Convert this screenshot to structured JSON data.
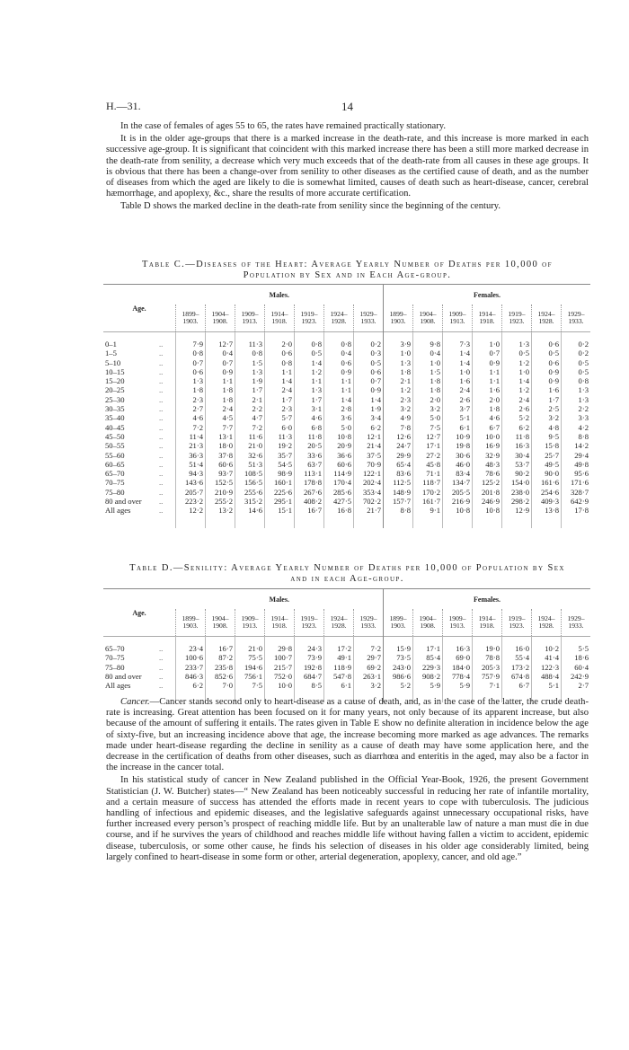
{
  "header": {
    "ref": "H.—31.",
    "page_number": "14"
  },
  "intro_paragraphs": [
    "In the case of females of ages 55 to 65, the rates have remained practically stationary.",
    "It is in the older age-groups that there is a marked increase in the death-rate, and this increase is more marked in each successive age-group. It is significant that coincident with this marked increase there has been a still more marked decrease in the death-rate from senility, a decrease which very much exceeds that of the death-rate from all causes in these age groups. It is obvious that there has been a change-over from senility to other diseases as the certified cause of death, and as the number of diseases from which the aged are likely to die is somewhat limited, causes of death such as heart-disease, cancer, cerebral hæmorrhage, and apoplexy, &c., share the results of more accurate certification.",
    "Table D shows the marked decline in the death-rate from senility since the beginning of the century."
  ],
  "table_c": {
    "title_line1": "Table C.—Diseases of the Heart: Average Yearly Number of Deaths per 10,000 of",
    "title_line2": "Population by Sex and in Each Age-group.",
    "age_header": "Age.",
    "males_header": "Males.",
    "females_header": "Females.",
    "periods": [
      [
        "1899–",
        "1903."
      ],
      [
        "1904–",
        "1908."
      ],
      [
        "1909–",
        "1913."
      ],
      [
        "1914–",
        "1918."
      ],
      [
        "1919–",
        "1923."
      ],
      [
        "1924–",
        "1928."
      ],
      [
        "1929–",
        "1933."
      ]
    ],
    "dots": "..",
    "rows": [
      {
        "age": "0–1",
        "males": [
          "7·9",
          "12·7",
          "11·3",
          "2·0",
          "0·8",
          "0·8",
          "0·2"
        ],
        "females": [
          "3·9",
          "9·8",
          "7·3",
          "1·0",
          "1·3",
          "0·6",
          "0·2"
        ]
      },
      {
        "age": "1–5",
        "males": [
          "0·8",
          "0·4",
          "0·8",
          "0·6",
          "0·5",
          "0·4",
          "0·3"
        ],
        "females": [
          "1·0",
          "0·4",
          "1·4",
          "0·7",
          "0·5",
          "0·5",
          "0·2"
        ]
      },
      {
        "age": "5–10",
        "males": [
          "0·7",
          "0·7",
          "1·5",
          "0·8",
          "1·4",
          "0·6",
          "0·5"
        ],
        "females": [
          "1·3",
          "1·0",
          "1·4",
          "0·9",
          "1·2",
          "0·6",
          "0·5"
        ]
      },
      {
        "age": "10–15",
        "males": [
          "0·6",
          "0·9",
          "1·3",
          "1·1",
          "1·2",
          "0·9",
          "0·6"
        ],
        "females": [
          "1·8",
          "1·5",
          "1·0",
          "1·1",
          "1·0",
          "0·9",
          "0·5"
        ]
      },
      {
        "age": "15–20",
        "males": [
          "1·3",
          "1·1",
          "1·9",
          "1·4",
          "1·1",
          "1·1",
          "0·7"
        ],
        "females": [
          "2·1",
          "1·8",
          "1·6",
          "1·1",
          "1·4",
          "0·9",
          "0·8"
        ]
      },
      {
        "age": "20–25",
        "males": [
          "1·8",
          "1·8",
          "1·7",
          "2·4",
          "1·3",
          "1·1",
          "0·9"
        ],
        "females": [
          "1·2",
          "1·8",
          "2·4",
          "1·6",
          "1·2",
          "1·6",
          "1·3"
        ]
      },
      {
        "age": "25–30",
        "males": [
          "2·3",
          "1·8",
          "2·1",
          "1·7",
          "1·7",
          "1·4",
          "1·4"
        ],
        "females": [
          "2·3",
          "2·0",
          "2·6",
          "2·0",
          "2·4",
          "1·7",
          "1·3"
        ]
      },
      {
        "age": "30–35",
        "males": [
          "2·7",
          "2·4",
          "2·2",
          "2·3",
          "3·1",
          "2·8",
          "1·9"
        ],
        "females": [
          "3·2",
          "3·2",
          "3·7",
          "1·8",
          "2·6",
          "2·5",
          "2·2"
        ]
      },
      {
        "age": "35–40",
        "males": [
          "4·6",
          "4·5",
          "4·7",
          "5·7",
          "4·6",
          "3·6",
          "3·4"
        ],
        "females": [
          "4·9",
          "5·0",
          "5·1",
          "4·6",
          "5·2",
          "3·2",
          "3·3"
        ]
      },
      {
        "age": "40–45",
        "males": [
          "7·2",
          "7·7",
          "7·2",
          "6·0",
          "6·8",
          "5·0",
          "6·2"
        ],
        "females": [
          "7·8",
          "7·5",
          "6·1",
          "6·7",
          "6·2",
          "4·8",
          "4·2"
        ]
      },
      {
        "age": "45–50",
        "males": [
          "11·4",
          "13·1",
          "11·6",
          "11·3",
          "11·8",
          "10·8",
          "12·1"
        ],
        "females": [
          "12·6",
          "12·7",
          "10·9",
          "10·0",
          "11·8",
          "9·5",
          "8·8"
        ]
      },
      {
        "age": "50–55",
        "males": [
          "21·3",
          "18·0",
          "21·0",
          "19·2",
          "20·5",
          "20·9",
          "21·4"
        ],
        "females": [
          "24·7",
          "17·1",
          "19·8",
          "16·9",
          "16·3",
          "15·8",
          "14·2"
        ]
      },
      {
        "age": "55–60",
        "males": [
          "36·3",
          "37·8",
          "32·6",
          "35·7",
          "33·6",
          "36·6",
          "37·5"
        ],
        "females": [
          "29·9",
          "27·2",
          "30·6",
          "32·9",
          "30·4",
          "25·7",
          "29·4"
        ]
      },
      {
        "age": "60–65",
        "males": [
          "51·4",
          "60·6",
          "51·3",
          "54·5",
          "63·7",
          "60·6",
          "70·9"
        ],
        "females": [
          "65·4",
          "45·8",
          "46·0",
          "48·3",
          "53·7",
          "49·5",
          "49·8"
        ]
      },
      {
        "age": "65–70",
        "males": [
          "94·3",
          "93·7",
          "108·5",
          "98·9",
          "113·1",
          "114·9",
          "122·1"
        ],
        "females": [
          "83·6",
          "71·1",
          "83·4",
          "78·6",
          "90·2",
          "90·0",
          "95·6"
        ]
      },
      {
        "age": "70–75",
        "males": [
          "143·6",
          "152·5",
          "156·5",
          "160·1",
          "178·8",
          "170·4",
          "202·4"
        ],
        "females": [
          "112·5",
          "118·7",
          "134·7",
          "125·2",
          "154·0",
          "161·6",
          "171·6"
        ]
      },
      {
        "age": "75–80",
        "males": [
          "205·7",
          "210·9",
          "255·6",
          "225·6",
          "267·6",
          "285·6",
          "353·4"
        ],
        "females": [
          "148·9",
          "170·2",
          "205·5",
          "201·8",
          "238·0",
          "254·6",
          "328·7"
        ]
      },
      {
        "age": "80 and over",
        "males": [
          "223·2",
          "255·2",
          "315·2",
          "295·1",
          "408·2",
          "427·5",
          "702·2"
        ],
        "females": [
          "157·7",
          "161·7",
          "216·9",
          "246·9",
          "298·2",
          "409·3",
          "642·9"
        ]
      },
      {
        "age": "All ages",
        "males": [
          "12·2",
          "13·2",
          "14·6",
          "15·1",
          "16·7",
          "16·8",
          "21·7"
        ],
        "females": [
          "8·8",
          "9·1",
          "10·8",
          "10·8",
          "12·9",
          "13·8",
          "17·8"
        ]
      }
    ]
  },
  "table_d": {
    "title_line1": "Table D.—Senility: Average Yearly Number of Deaths per 10,000 of Population by Sex",
    "title_line2": "and in each Age-group.",
    "age_header": "Age.",
    "males_header": "Males.",
    "females_header": "Females.",
    "periods": [
      [
        "1899–",
        "1903."
      ],
      [
        "1904–",
        "1908."
      ],
      [
        "1909–",
        "1913."
      ],
      [
        "1914–",
        "1918."
      ],
      [
        "1919–",
        "1923."
      ],
      [
        "1924–",
        "1928."
      ],
      [
        "1929–",
        "1933."
      ]
    ],
    "dots": "..",
    "rows": [
      {
        "age": "65–70",
        "males": [
          "23·4",
          "16·7",
          "21·0",
          "29·8",
          "24·3",
          "17·2",
          "7·2"
        ],
        "females": [
          "15·9",
          "17·1",
          "16·3",
          "19·0",
          "16·0",
          "10·2",
          "5·5"
        ]
      },
      {
        "age": "70–75",
        "males": [
          "100·6",
          "87·2",
          "75·5",
          "100·7",
          "73·9",
          "49·1",
          "29·7"
        ],
        "females": [
          "73·5",
          "85·4",
          "69·0",
          "78·8",
          "55·4",
          "41·4",
          "18·6"
        ]
      },
      {
        "age": "75–80",
        "males": [
          "233·7",
          "235·8",
          "194·6",
          "215·7",
          "192·8",
          "118·9",
          "69·2"
        ],
        "females": [
          "243·0",
          "229·3",
          "184·0",
          "205·3",
          "173·2",
          "122·3",
          "60·4"
        ]
      },
      {
        "age": "80 and over",
        "males": [
          "846·3",
          "852·6",
          "756·1",
          "752·0",
          "684·7",
          "547·8",
          "263·1"
        ],
        "females": [
          "986·6",
          "908·2",
          "778·4",
          "757·9",
          "674·8",
          "488·4",
          "242·9"
        ]
      },
      {
        "age": "All ages",
        "males": [
          "6·2",
          "7·0",
          "7·5",
          "10·0",
          "8·5",
          "6·1",
          "3·2"
        ],
        "females": [
          "5·2",
          "5·9",
          "5·9",
          "7·1",
          "6·7",
          "5·1",
          "2·7"
        ]
      }
    ]
  },
  "cancer": {
    "heading": "Cancer.",
    "paragraph1_rest": "—Cancer stands second only to heart-disease as a cause of death, and, as in the case of the latter, the crude death-rate is increasing. Great attention has been focused on it for many years, not only because of its apparent increase, but also because of the amount of suffering it entails. The rates given in Table E show no definite alteration in incidence below the age of sixty-five, but an increasing incidence above that age, the increase becoming more marked as age advances. The remarks made under heart-disease regarding the decline in senility as a cause of death may have some application here, and the decrease in the certification of deaths from other diseases, such as diarrhœa and enteritis in the aged, may also be a factor in the increase in the cancer total.",
    "paragraph2": "In his statistical study of cancer in New Zealand published in the Official Year-Book, 1926, the present Government Statistician (J. W. Butcher) states—“ New Zealand has been noticeably successful in reducing her rate of infantile mortality, and a certain measure of success has attended the efforts made in recent years to cope with tuberculosis. The judicious handling of infectious and epidemic diseases, and the legislative safeguards against unnecessary occupational risks, have further increased every person’s prospect of reaching middle life. But by an unalterable law of nature a man must die in due course, and if he survives the years of childhood and reaches middle life without having fallen a victim to accident, epidemic disease, tuberculosis, or some other cause, he finds his selection of diseases in his older age considerably limited, being largely confined to heart-disease in some form or other, arterial degeneration, apoplexy, cancer, and old age.”"
  }
}
